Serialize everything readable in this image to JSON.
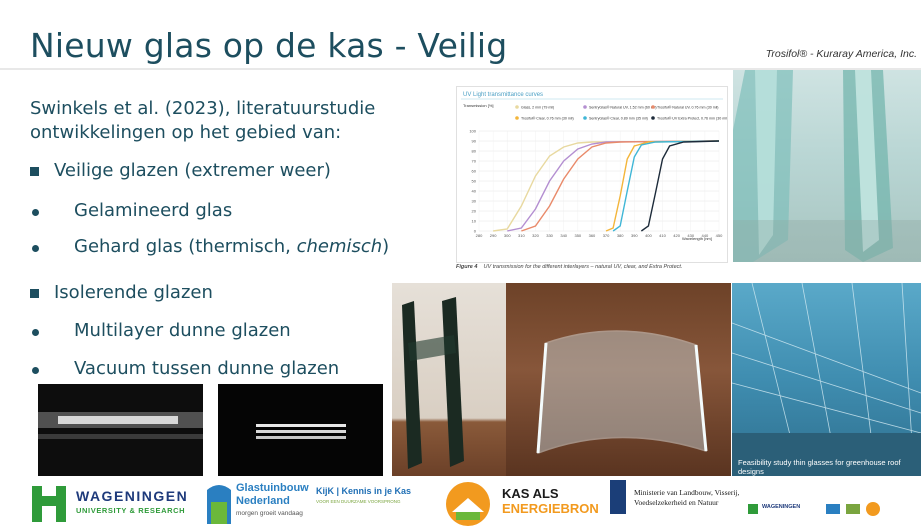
{
  "slide": {
    "title": "Nieuw glas op de kas - Veilig",
    "credit": "Trosifol® - Kuraray America, Inc.",
    "intro": "Swinkels et al. (2023), literatuurstudie ontwikkelingen op het gebied van:",
    "bullets": [
      {
        "level": 1,
        "text": "Veilige glazen (extremer weer)"
      },
      {
        "level": 2,
        "text": "Gelamineerd glas"
      },
      {
        "level": 2,
        "text": "Gehard glas (thermisch, ",
        "italic": "chemisch",
        "after": ")"
      },
      {
        "level": 1,
        "text": "Isolerende glazen"
      },
      {
        "level": 2,
        "text": "Multilayer dunne glazen"
      },
      {
        "level": 2,
        "text": "Vacuum tussen dunne glazen"
      }
    ]
  },
  "chart": {
    "title": "UV Light transmittance curves",
    "ylabel": "Transmission [%]",
    "xlabel": "Wavelength [nm]",
    "legend": [
      {
        "name": "Glass, 2 mm (79 mil)",
        "color": "#e8d9a0"
      },
      {
        "name": "SentryGlas® Natural UV, 1.52 mm (60 mil)",
        "color": "#b48fd1"
      },
      {
        "name": "Trosifol® Natural UV, 0.76 mm (30 mil)",
        "color": "#e98a6a"
      },
      {
        "name": "Trosifol® Clear, 0.76 mm (30 mil)",
        "color": "#f3b53a"
      },
      {
        "name": "SentryGlas® Clear, 0.89 mm (35 mil)",
        "color": "#3fb6d6"
      },
      {
        "name": "Trosifol® UV Extra Protect, 0.76 mm (30 mil)",
        "color": "#1d2b3a"
      }
    ],
    "caption_label": "Figure 4",
    "caption": "UV transmission for the different interlayers – natural UV, clear, and Extra Protect."
  },
  "chart_data": {
    "type": "line",
    "title": "UV Light transmittance curves",
    "xlabel": "Wavelength [nm]",
    "ylabel": "Transmission [%]",
    "xlim": [
      280,
      450
    ],
    "ylim": [
      0,
      100
    ],
    "x_ticks": [
      280,
      290,
      300,
      310,
      320,
      330,
      340,
      350,
      360,
      370,
      380,
      390,
      400,
      410,
      420,
      430,
      440,
      450
    ],
    "y_ticks": [
      0,
      10,
      20,
      30,
      40,
      50,
      60,
      70,
      80,
      90,
      100
    ],
    "series": [
      {
        "name": "Glass, 2 mm (79 mil)",
        "color": "#e8d9a0",
        "x": [
          290,
          300,
          310,
          320,
          330,
          340,
          350,
          360,
          450
        ],
        "y": [
          0,
          2,
          25,
          55,
          75,
          84,
          88,
          89,
          90
        ]
      },
      {
        "name": "SentryGlas® Natural UV, 1.52 mm (60 mil)",
        "color": "#b48fd1",
        "x": [
          300,
          310,
          320,
          330,
          340,
          350,
          360,
          370,
          450
        ],
        "y": [
          0,
          3,
          22,
          50,
          70,
          82,
          87,
          89,
          90
        ]
      },
      {
        "name": "Trosifol® Natural UV, 0.76 mm (30 mil)",
        "color": "#e98a6a",
        "x": [
          310,
          320,
          330,
          340,
          350,
          360,
          370,
          380,
          450
        ],
        "y": [
          0,
          5,
          25,
          52,
          72,
          84,
          88,
          89,
          90
        ]
      },
      {
        "name": "Trosifol® Clear, 0.76 mm (30 mil)",
        "color": "#f3b53a",
        "x": [
          370,
          375,
          380,
          385,
          390,
          400,
          450
        ],
        "y": [
          0,
          3,
          35,
          72,
          85,
          89,
          90
        ]
      },
      {
        "name": "SentryGlas® Clear, 0.89 mm (35 mil)",
        "color": "#3fb6d6",
        "x": [
          375,
          380,
          385,
          390,
          395,
          405,
          450
        ],
        "y": [
          0,
          5,
          40,
          74,
          86,
          89,
          90
        ]
      },
      {
        "name": "Trosifol® UV Extra Protect, 0.76 mm (30 mil)",
        "color": "#1d2b3a",
        "x": [
          395,
          400,
          405,
          410,
          415,
          425,
          450
        ],
        "y": [
          0,
          5,
          38,
          72,
          85,
          89,
          90
        ]
      }
    ]
  },
  "report": {
    "title": "Feasibility study thin glasses for greenhouse roof designs"
  },
  "logos": {
    "wur_name": "WAGENINGEN",
    "wur_sub": "UNIVERSITY & RESEARCH",
    "glastuinbouw_1": "Glastuinbouw",
    "glastuinbouw_2": "Nederland",
    "glastuinbouw_3": "morgen groeit vandaag",
    "kijk_1": "KijK | Kennis in je Kas",
    "kijk_2": "VOOR EEN DUURZAME VOORSPRONG",
    "kas_1": "KAS ALS",
    "kas_2": "ENERGIEBRON",
    "ministerie_1": "Ministerie van Landbouw, Visserij,",
    "ministerie_2": "Voedselzekerheid en Natuur",
    "mini_wur": "WAGENINGEN"
  }
}
